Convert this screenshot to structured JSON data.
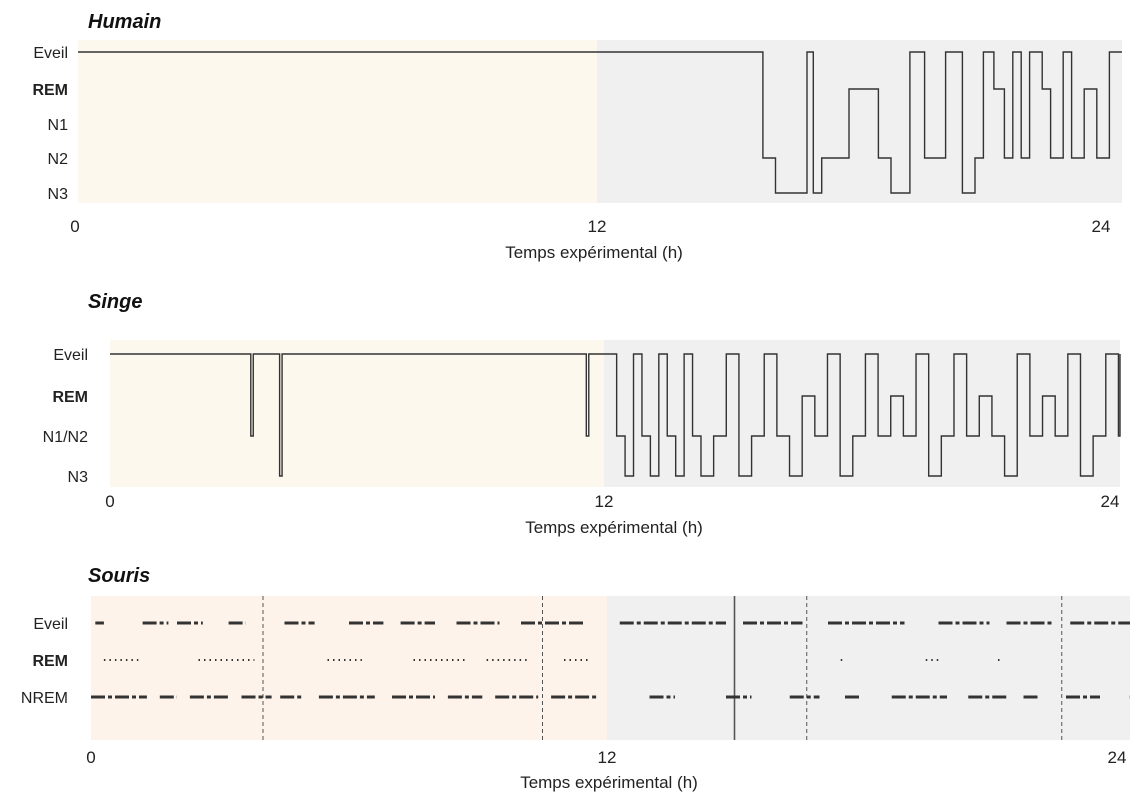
{
  "chart_data": [
    {
      "type": "line",
      "title": "Humain",
      "xlabel": "Temps expérimental (h)",
      "ylabel": "",
      "xlim": [
        0,
        24
      ],
      "xticks": [
        "0",
        "12",
        "24"
      ],
      "categories": [
        "Eveil",
        "REM",
        "N1",
        "N2",
        "N3"
      ],
      "bold_categories": [
        "REM"
      ],
      "shaded_periods": [
        {
          "from": 0,
          "to": 12,
          "color": "#fdf8ee"
        },
        {
          "from": 12,
          "to": 24.5,
          "color": "#f0f0f0"
        }
      ],
      "series": [
        {
          "x": [
            0,
            15.9,
            15.95,
            16.2,
            16.25,
            16.9,
            17.0,
            17.1,
            17.15,
            17.3,
            17.35,
            17.9,
            18.0,
            18.6,
            18.7,
            18.95,
            19.0,
            19.4,
            19.45,
            19.7,
            19.8,
            20.2,
            20.3,
            20.6,
            20.7,
            20.9,
            21.0,
            21.1,
            21.2,
            21.4,
            21.45,
            21.6,
            21.7,
            21.8,
            21.9,
            22.0,
            22.1,
            22.2,
            22.3,
            22.5,
            22.6,
            22.7,
            22.8,
            23.0,
            23.1,
            23.2,
            23.3,
            23.5,
            23.6,
            23.8,
            23.9,
            24.1,
            24.2,
            24.5
          ],
          "y": [
            "Eveil",
            "Eveil",
            "N2",
            "N2",
            "N3",
            "N3",
            "Eveil",
            "Eveil",
            "N3",
            "N3",
            "N2",
            "N2",
            "REM",
            "REM",
            "N2",
            "N2",
            "N3",
            "N3",
            "Eveil",
            "Eveil",
            "N2",
            "N2",
            "Eveil",
            "Eveil",
            "N3",
            "N3",
            "N2",
            "N2",
            "Eveil",
            "Eveil",
            "REM",
            "REM",
            "N2",
            "N2",
            "Eveil",
            "Eveil",
            "N2",
            "N2",
            "Eveil",
            "Eveil",
            "REM",
            "REM",
            "N2",
            "N2",
            "Eveil",
            "Eveil",
            "N2",
            "N2",
            "REM",
            "REM",
            "N2",
            "N2",
            "Eveil",
            "Eveil"
          ]
        }
      ]
    },
    {
      "type": "line",
      "title": "Singe",
      "xlabel": "Temps expérimental (h)",
      "ylabel": "",
      "xlim": [
        0,
        24
      ],
      "xticks": [
        "0",
        "12",
        "24"
      ],
      "categories": [
        "Eveil",
        "REM",
        "N1/N2",
        "N3"
      ],
      "bold_categories": [
        "REM"
      ],
      "shaded_periods": [
        {
          "from": 0,
          "to": 12,
          "color": "#fdf8ee"
        },
        {
          "from": 12,
          "to": 24.5,
          "color": "#f0f0f0"
        }
      ],
      "series": [
        {
          "x": [
            0,
            3.4,
            3.42,
            3.46,
            3.48,
            4.1,
            4.12,
            4.16,
            4.18,
            11.55,
            11.57,
            11.61,
            11.63,
            12.1,
            12.3,
            12.5,
            12.7,
            12.9,
            13.1,
            13.3,
            13.5,
            13.7,
            13.9,
            14.1,
            14.3,
            14.6,
            14.9,
            15.2,
            15.5,
            15.8,
            16.1,
            16.4,
            16.7,
            17.0,
            17.3,
            17.6,
            17.9,
            18.2,
            18.5,
            18.8,
            19.1,
            19.4,
            19.7,
            20.0,
            20.3,
            20.6,
            20.9,
            21.2,
            21.5,
            21.8,
            22.1,
            22.4,
            22.7,
            23.0,
            23.3,
            23.6,
            23.9,
            24.2,
            24.5
          ],
          "y": [
            "Eveil",
            "Eveil",
            "N1/N2",
            "N1/N2",
            "Eveil",
            "Eveil",
            "N3",
            "N3",
            "Eveil",
            "Eveil",
            "N1/N2",
            "N1/N2",
            "Eveil",
            "Eveil",
            "N1/N2",
            "N3",
            "Eveil",
            "N1/N2",
            "N3",
            "Eveil",
            "N1/N2",
            "N3",
            "Eveil",
            "N1/N2",
            "N3",
            "N1/N2",
            "Eveil",
            "N3",
            "N1/N2",
            "Eveil",
            "N1/N2",
            "N3",
            "REM",
            "N1/N2",
            "Eveil",
            "N3",
            "N1/N2",
            "Eveil",
            "N1/N2",
            "REM",
            "N1/N2",
            "Eveil",
            "N3",
            "N1/N2",
            "Eveil",
            "N1/N2",
            "REM",
            "N1/N2",
            "N3",
            "Eveil",
            "N1/N2",
            "REM",
            "N1/N2",
            "Eveil",
            "N3",
            "N1/N2",
            "Eveil",
            "N1/N2",
            "Eveil"
          ]
        }
      ]
    },
    {
      "type": "scatter",
      "title": "Souris",
      "xlabel": "Temps expérimental (h)",
      "ylabel": "",
      "xlim": [
        0,
        24
      ],
      "xticks": [
        "0",
        "12",
        "24"
      ],
      "categories": [
        "Eveil",
        "REM",
        "NREM"
      ],
      "bold_categories": [
        "REM"
      ],
      "shaded_periods": [
        {
          "from": 0,
          "to": 12,
          "color": "#fdf3ea"
        },
        {
          "from": 12,
          "to": 24.5,
          "color": "#f0f0f0"
        }
      ],
      "reference_lines": [
        {
          "x": 4,
          "style": "dashed"
        },
        {
          "x": 10.5,
          "style": "dashed"
        },
        {
          "x": 15,
          "style": "solid"
        },
        {
          "x": 16.7,
          "style": "dashed"
        },
        {
          "x": 22.7,
          "style": "dashed"
        }
      ],
      "series": [
        {
          "name": "Eveil",
          "segments": [
            [
              0.1,
              0.3
            ],
            [
              1.2,
              1.8
            ],
            [
              2.0,
              2.6
            ],
            [
              3.2,
              3.6
            ],
            [
              4.5,
              5.2
            ],
            [
              6.0,
              6.8
            ],
            [
              7.2,
              8.0
            ],
            [
              8.5,
              9.5
            ],
            [
              10.0,
              11.5
            ],
            [
              12.3,
              14.8
            ],
            [
              15.2,
              16.6
            ],
            [
              17.2,
              19.0
            ],
            [
              19.8,
              21.0
            ],
            [
              21.4,
              22.5
            ],
            [
              22.9,
              24.5
            ]
          ]
        },
        {
          "name": "REM",
          "segments": [
            [
              0.3,
              1.1
            ],
            [
              2.5,
              3.8
            ],
            [
              5.5,
              6.3
            ],
            [
              7.5,
              8.7
            ],
            [
              9.2,
              10.2
            ],
            [
              11.0,
              11.6
            ],
            [
              17.5,
              17.6
            ],
            [
              19.5,
              19.8
            ],
            [
              21.2,
              21.3
            ]
          ]
        },
        {
          "name": "NREM",
          "segments": [
            [
              0.0,
              1.3
            ],
            [
              1.6,
              2.0
            ],
            [
              2.3,
              3.2
            ],
            [
              3.5,
              4.2
            ],
            [
              4.4,
              4.9
            ],
            [
              5.3,
              6.6
            ],
            [
              7.0,
              8.0
            ],
            [
              8.3,
              9.1
            ],
            [
              9.4,
              10.4
            ],
            [
              10.7,
              11.8
            ],
            [
              13.0,
              13.6
            ],
            [
              14.8,
              15.4
            ],
            [
              16.3,
              17.0
            ],
            [
              17.6,
              18.0
            ],
            [
              18.7,
              20.0
            ],
            [
              20.5,
              21.4
            ],
            [
              21.8,
              22.2
            ],
            [
              22.8,
              23.6
            ],
            [
              24.3,
              24.5
            ]
          ]
        }
      ]
    }
  ]
}
